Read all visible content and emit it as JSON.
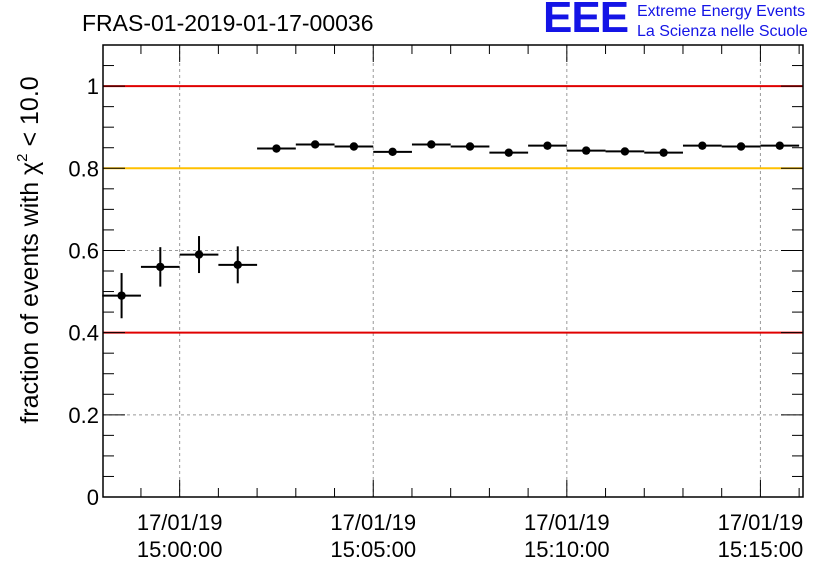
{
  "header": {
    "run_title": "FRAS-01-2019-01-17-00036",
    "logo_mark": "EEE",
    "logo_line1": "Extreme Energy Events",
    "logo_line2": "La Scienza nelle Scuole"
  },
  "colors": {
    "logo": "#1414e6",
    "limit_red": "#e00000",
    "limit_gold": "#ffc000",
    "points": "#000000",
    "grid": "#999999"
  },
  "chart_data": {
    "type": "scatter",
    "title": "FRAS-01-2019-01-17-00036",
    "xlabel": "",
    "ylabel": "fraction of events with χ² < 10.0",
    "ylabel_parts": {
      "pre": "fraction of events with χ",
      "sup": "2",
      "post": " < 10.0"
    },
    "x_unit": "minutes from 15:00:00 on 17/01/19",
    "xlim": [
      -1.98,
      16.1
    ],
    "ylim": [
      0,
      1.1
    ],
    "grid": true,
    "y_ticks": [
      0,
      0.2,
      0.4,
      0.6,
      0.8,
      1
    ],
    "y_tick_labels": [
      "0",
      "0.2",
      "0.4",
      "0.6",
      "0.8",
      "1"
    ],
    "x_ticks": [
      0,
      5,
      10,
      15
    ],
    "x_tick_labels": [
      [
        "17/01/19",
        "15:00:00"
      ],
      [
        "17/01/19",
        "15:05:00"
      ],
      [
        "17/01/19",
        "15:10:00"
      ],
      [
        "17/01/19",
        "15:15:00"
      ]
    ],
    "reference_lines": [
      {
        "y": 1.0,
        "color": "#e00000"
      },
      {
        "y": 0.8,
        "color": "#ffc000"
      },
      {
        "y": 0.4,
        "color": "#e00000"
      }
    ],
    "bin_width": 1.0,
    "points": [
      {
        "x": -1.5,
        "y": 0.49,
        "err": 0.055
      },
      {
        "x": -0.5,
        "y": 0.56,
        "err": 0.048
      },
      {
        "x": 0.5,
        "y": 0.59,
        "err": 0.045
      },
      {
        "x": 1.5,
        "y": 0.565,
        "err": 0.045
      },
      {
        "x": 2.5,
        "y": 0.848,
        "err": 0.006
      },
      {
        "x": 3.5,
        "y": 0.858,
        "err": 0.006
      },
      {
        "x": 4.5,
        "y": 0.853,
        "err": 0.006
      },
      {
        "x": 5.5,
        "y": 0.84,
        "err": 0.006
      },
      {
        "x": 6.5,
        "y": 0.858,
        "err": 0.006
      },
      {
        "x": 7.5,
        "y": 0.853,
        "err": 0.006
      },
      {
        "x": 8.5,
        "y": 0.838,
        "err": 0.006
      },
      {
        "x": 9.5,
        "y": 0.855,
        "err": 0.006
      },
      {
        "x": 10.5,
        "y": 0.843,
        "err": 0.006
      },
      {
        "x": 11.5,
        "y": 0.841,
        "err": 0.006
      },
      {
        "x": 12.5,
        "y": 0.838,
        "err": 0.006
      },
      {
        "x": 13.5,
        "y": 0.855,
        "err": 0.006
      },
      {
        "x": 14.5,
        "y": 0.853,
        "err": 0.006
      },
      {
        "x": 15.5,
        "y": 0.855,
        "err": 0.006
      }
    ]
  }
}
